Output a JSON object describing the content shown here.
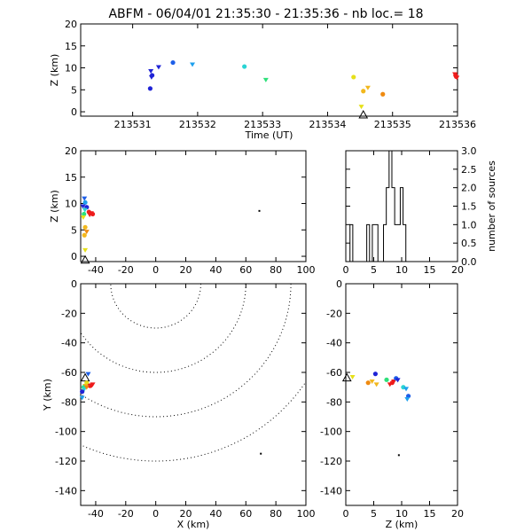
{
  "title": "ABFM - 06/04/01 21:35:30 - 21:35:36 - nb loc.=      18",
  "colors": {
    "c0": "#1f23d6",
    "c1": "#1e5fe8",
    "c2": "#1ea0ee",
    "c3": "#2ad4d4",
    "c4": "#2ee07a",
    "c5": "#e6e01a",
    "c6": "#f2b81e",
    "c7": "#ef8a10",
    "c8": "#ee1b1b"
  },
  "chart_data": [
    {
      "id": "time-height",
      "type": "scatter",
      "xlabel": "Time (UT)",
      "ylabel": "Z (km)",
      "xlim": [
        213530.2,
        213536
      ],
      "ylim": [
        -1,
        20
      ],
      "xticks": [
        "213531",
        "213532",
        "213533",
        "213534",
        "213535",
        "213536"
      ],
      "yticks": [
        "0",
        "5",
        "10",
        "15",
        "20"
      ],
      "station_marker": {
        "x": 213534.55,
        "y": -0.8,
        "label": "triangle"
      },
      "points": [
        {
          "x": 213531.28,
          "y": 9.3,
          "c": "c0"
        },
        {
          "x": 213531.3,
          "y": 8.3,
          "c": "c0"
        },
        {
          "x": 213531.29,
          "y": 7.9,
          "c": "c0"
        },
        {
          "x": 213531.27,
          "y": 5.3,
          "c": "c0"
        },
        {
          "x": 213531.4,
          "y": 10.2,
          "c": "c0"
        },
        {
          "x": 213531.62,
          "y": 11.2,
          "c": "c1"
        },
        {
          "x": 213531.92,
          "y": 10.8,
          "c": "c2"
        },
        {
          "x": 213532.72,
          "y": 10.3,
          "c": "c3"
        },
        {
          "x": 213533.05,
          "y": 7.3,
          "c": "c4"
        },
        {
          "x": 213534.4,
          "y": 7.9,
          "c": "c5"
        },
        {
          "x": 213534.52,
          "y": 1.2,
          "c": "c5"
        },
        {
          "x": 213534.55,
          "y": 4.7,
          "c": "c6"
        },
        {
          "x": 213534.62,
          "y": 5.5,
          "c": "c6"
        },
        {
          "x": 213534.85,
          "y": 4.0,
          "c": "c7"
        },
        {
          "x": 213535.96,
          "y": 8.6,
          "c": "c8"
        },
        {
          "x": 213535.98,
          "y": 8.0,
          "c": "c8"
        },
        {
          "x": 213535.99,
          "y": 7.8,
          "c": "c8"
        },
        {
          "x": 213535.97,
          "y": 8.3,
          "c": "c8"
        }
      ]
    },
    {
      "id": "x-height",
      "type": "scatter",
      "ylabel": "Z (km)",
      "xlim": [
        -50,
        100
      ],
      "ylim": [
        -1,
        20
      ],
      "xticks": [
        "-40",
        "-20",
        "0",
        "20",
        "40",
        "60",
        "80",
        "100"
      ],
      "yticks": [
        "0",
        "5",
        "10",
        "15",
        "20"
      ],
      "station_marker": {
        "x": -47,
        "y": -0.8,
        "label": "triangle"
      },
      "points": [
        {
          "x": -47.5,
          "y": 11.0,
          "c": "c1"
        },
        {
          "x": -47,
          "y": 10.2,
          "c": "c2"
        },
        {
          "x": -48.5,
          "y": 9.5,
          "c": "c0"
        },
        {
          "x": -46,
          "y": 9.3,
          "c": "c0"
        },
        {
          "x": -47.2,
          "y": 8.8,
          "c": "c3"
        },
        {
          "x": -47.8,
          "y": 8.0,
          "c": "c4"
        },
        {
          "x": -48.3,
          "y": 7.4,
          "c": "c5"
        },
        {
          "x": -47,
          "y": 5.5,
          "c": "c6"
        },
        {
          "x": -46,
          "y": 4.7,
          "c": "c7"
        },
        {
          "x": -47.5,
          "y": 4.0,
          "c": "c6"
        },
        {
          "x": -47,
          "y": 1.2,
          "c": "c5"
        },
        {
          "x": -44.5,
          "y": 8.4,
          "c": "c8"
        },
        {
          "x": -43,
          "y": 8.2,
          "c": "c8"
        },
        {
          "x": -42,
          "y": 8.0,
          "c": "c8"
        },
        {
          "x": -44,
          "y": 7.9,
          "c": "c8"
        },
        {
          "x": 69,
          "y": 8.6,
          "c": "black"
        }
      ]
    },
    {
      "id": "histogram",
      "type": "bar",
      "ylabel": "number of sources",
      "xlim": [
        0,
        20
      ],
      "ylim": [
        0,
        3
      ],
      "xticks": [
        "0",
        "5",
        "10",
        "15",
        "20"
      ],
      "yticks": [
        "0.0",
        "0.5",
        "1.0",
        "1.5",
        "2.0",
        "2.5",
        "3.0"
      ],
      "bin_width": 0.5,
      "bins": [
        {
          "x": 1.0,
          "count": 1
        },
        {
          "x": 1.5,
          "count": 0
        },
        {
          "x": 2.0,
          "count": 0
        },
        {
          "x": 2.5,
          "count": 0
        },
        {
          "x": 3.0,
          "count": 0
        },
        {
          "x": 3.5,
          "count": 0
        },
        {
          "x": 4.0,
          "count": 1
        },
        {
          "x": 4.5,
          "count": 0
        },
        {
          "x": 5.0,
          "count": 1
        },
        {
          "x": 5.5,
          "count": 1
        },
        {
          "x": 6.0,
          "count": 0
        },
        {
          "x": 6.5,
          "count": 0
        },
        {
          "x": 7.0,
          "count": 1
        },
        {
          "x": 7.5,
          "count": 2
        },
        {
          "x": 8.0,
          "count": 3
        },
        {
          "x": 8.5,
          "count": 2
        },
        {
          "x": 9.0,
          "count": 1
        },
        {
          "x": 9.5,
          "count": 1
        },
        {
          "x": 10.0,
          "count": 2
        },
        {
          "x": 10.5,
          "count": 1
        },
        {
          "x": 11.0,
          "count": 0
        }
      ]
    },
    {
      "id": "plan-view",
      "type": "scatter",
      "xlabel": "X (km)",
      "ylabel": "Y (km)",
      "xlim": [
        -50,
        100
      ],
      "ylim": [
        -150,
        0
      ],
      "xticks": [
        "-40",
        "-20",
        "0",
        "20",
        "40",
        "60",
        "80",
        "100"
      ],
      "yticks": [
        "0",
        "-20",
        "-40",
        "-60",
        "-80",
        "-100",
        "-120",
        "-140"
      ],
      "range_rings_km": [
        30,
        60,
        90,
        120
      ],
      "ring_center": [
        0,
        0
      ],
      "station_marker": {
        "x": -47,
        "y": -64,
        "label": "triangle"
      },
      "points": [
        {
          "x": -45,
          "y": -61,
          "c": "c1"
        },
        {
          "x": -46,
          "y": -67,
          "c": "c5"
        },
        {
          "x": -47,
          "y": -69,
          "c": "c6"
        },
        {
          "x": -48,
          "y": -70,
          "c": "c4"
        },
        {
          "x": -47.5,
          "y": -71,
          "c": "c3"
        },
        {
          "x": -49,
          "y": -73,
          "c": "c0"
        },
        {
          "x": -49,
          "y": -77,
          "c": "c2"
        },
        {
          "x": -44,
          "y": -69,
          "c": "c8"
        },
        {
          "x": -42,
          "y": -68,
          "c": "c8"
        },
        {
          "x": -43.5,
          "y": -69,
          "c": "c8"
        },
        {
          "x": -46,
          "y": -70,
          "c": "c7"
        },
        {
          "x": 70,
          "y": -115,
          "c": "black"
        }
      ]
    },
    {
      "id": "height-y",
      "type": "scatter",
      "xlabel": "Z (km)",
      "xlim": [
        0,
        20
      ],
      "ylim": [
        -150,
        0
      ],
      "xticks": [
        "0",
        "5",
        "10",
        "15",
        "20"
      ],
      "yticks": [
        "0",
        "-20",
        "-40",
        "-60",
        "-80",
        "-100",
        "-120",
        "-140"
      ],
      "station_marker": {
        "x": 0.2,
        "y": -64,
        "label": "triangle"
      },
      "points": [
        {
          "x": 1.2,
          "y": -63,
          "c": "c5"
        },
        {
          "x": 4.0,
          "y": -67,
          "c": "c7"
        },
        {
          "x": 4.7,
          "y": -66,
          "c": "c6"
        },
        {
          "x": 5.3,
          "y": -61,
          "c": "c0"
        },
        {
          "x": 5.5,
          "y": -68,
          "c": "c6"
        },
        {
          "x": 7.3,
          "y": -65,
          "c": "c4"
        },
        {
          "x": 7.9,
          "y": -68,
          "c": "c8"
        },
        {
          "x": 8.3,
          "y": -67,
          "c": "c8"
        },
        {
          "x": 8.6,
          "y": -66,
          "c": "c8"
        },
        {
          "x": 9.0,
          "y": -64,
          "c": "c1"
        },
        {
          "x": 9.3,
          "y": -65,
          "c": "c0"
        },
        {
          "x": 10.3,
          "y": -70,
          "c": "c3"
        },
        {
          "x": 10.8,
          "y": -71,
          "c": "c2"
        },
        {
          "x": 11.2,
          "y": -76,
          "c": "c1"
        },
        {
          "x": 11.0,
          "y": -78,
          "c": "c2"
        },
        {
          "x": 9.5,
          "y": -116,
          "c": "black"
        }
      ]
    }
  ]
}
